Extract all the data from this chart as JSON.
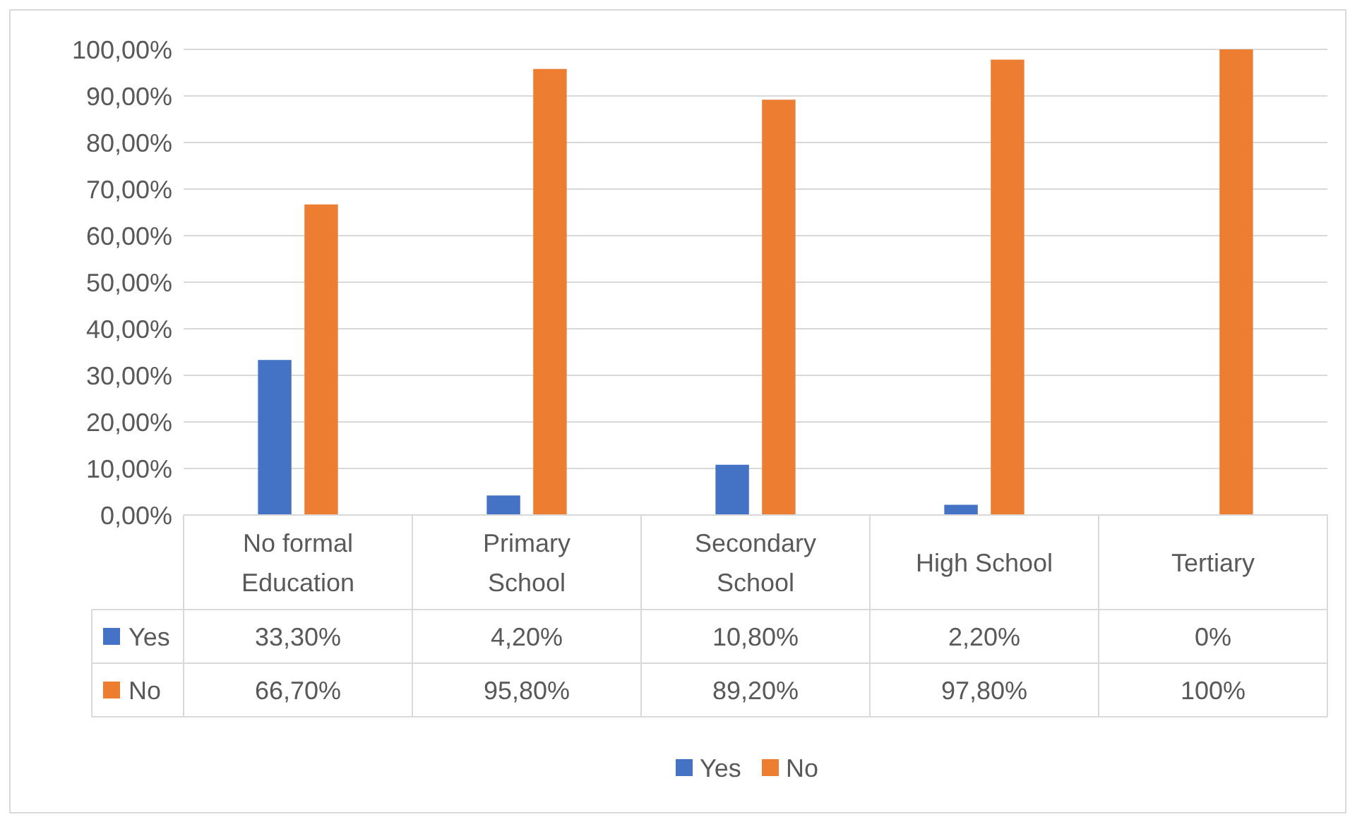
{
  "chart_data": {
    "type": "bar",
    "categories": [
      "No formal Education",
      "Primary School",
      "Secondary School",
      "High School",
      "Tertiary"
    ],
    "series": [
      {
        "name": "Yes",
        "color": "#4472c4",
        "values": [
          33.3,
          4.2,
          10.8,
          2.2,
          0
        ],
        "value_labels": [
          "33,30%",
          "4,20%",
          "10,80%",
          "2,20%",
          "0%"
        ]
      },
      {
        "name": "No",
        "color": "#ed7d31",
        "values": [
          66.7,
          95.8,
          89.2,
          97.8,
          100
        ],
        "value_labels": [
          "66,70%",
          "95,80%",
          "89,20%",
          "97,80%",
          "100%"
        ]
      }
    ],
    "ylim": [
      0,
      100
    ],
    "yticks": [
      {
        "value": 0,
        "label": "0,00%"
      },
      {
        "value": 10,
        "label": "10,00%"
      },
      {
        "value": 20,
        "label": "20,00%"
      },
      {
        "value": 30,
        "label": "30,00%"
      },
      {
        "value": 40,
        "label": "40,00%"
      },
      {
        "value": 50,
        "label": "50,00%"
      },
      {
        "value": 60,
        "label": "60,00%"
      },
      {
        "value": 70,
        "label": "70,00%"
      },
      {
        "value": 80,
        "label": "80,00%"
      },
      {
        "value": 90,
        "label": "90,00%"
      },
      {
        "value": 100,
        "label": "100,00%"
      }
    ],
    "grid": "y",
    "legend": "bottom"
  }
}
